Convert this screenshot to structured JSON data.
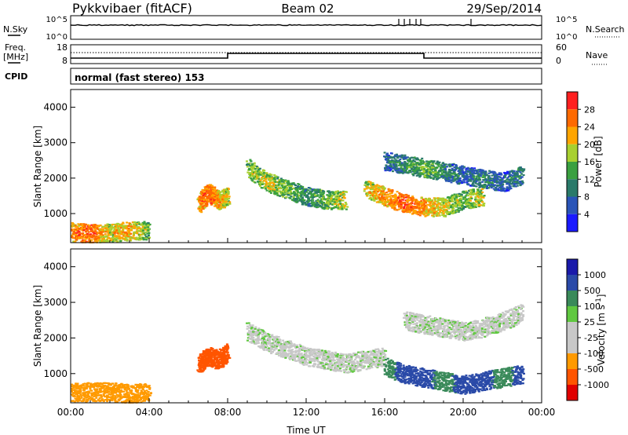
{
  "header": {
    "station": "Pykkvibaer (fitACF)",
    "beam": "Beam 02",
    "date": "29/Sep/2014"
  },
  "noise_panel": {
    "left_label": "N.Sky",
    "right_label": "N.Search",
    "left_ticks": [
      "10^5",
      "10^0"
    ],
    "right_ticks": [
      "10^5",
      "10^0"
    ]
  },
  "freq_panel": {
    "left_label": "Freq.",
    "left_unit": "[MHz]",
    "right_label": "Nave",
    "left_ticks": [
      "18",
      "8"
    ],
    "right_ticks": [
      "60",
      "0"
    ]
  },
  "cpid_panel": {
    "label": "CPID",
    "text": "normal (fast stereo) 153"
  },
  "colors": {
    "power": [
      "#1a1aff",
      "#2a55b8",
      "#2a7a6a",
      "#3aa040",
      "#a8d030",
      "#ffa500",
      "#ff6a00",
      "#ff2020"
    ],
    "velocity": [
      "#e00000",
      "#ff5500",
      "#ff9a00",
      "#c8c8c8",
      "#c8c8c8",
      "#60c840",
      "#3a8a5a",
      "#2a4aa8",
      "#1a1aaa"
    ]
  },
  "chart_data": [
    {
      "type": "heatmap",
      "title": "Power",
      "ylabel": "Slant Range [km]",
      "xlabel": "",
      "colorbar_label": "Power [dB]",
      "colorbar_ticks": [
        "28",
        "24",
        "20",
        "16",
        "12",
        "8",
        "4"
      ],
      "y_ticks": [
        "4000",
        "3000",
        "2000",
        "1000"
      ],
      "ylim": [
        180,
        4500
      ],
      "xlim": [
        0,
        24
      ],
      "series": [
        {
          "x": [
            0,
            1,
            2,
            3,
            4
          ],
          "y": [
            500,
            450,
            480,
            520,
            550
          ],
          "value": [
            24,
            28,
            20,
            24,
            16
          ]
        },
        {
          "x": [
            6.5,
            7,
            7.5,
            8
          ],
          "y": [
            1300,
            1600,
            1400,
            1500
          ],
          "value": [
            24,
            28,
            24,
            20
          ]
        },
        {
          "x": [
            9,
            10,
            11,
            12,
            13,
            14
          ],
          "y": [
            2300,
            1900,
            1700,
            1500,
            1400,
            1400
          ],
          "value": [
            16,
            20,
            16,
            12,
            16,
            20
          ]
        },
        {
          "x": [
            15,
            16,
            17,
            18,
            19,
            20,
            21
          ],
          "y": [
            1700,
            1500,
            1300,
            1200,
            1200,
            1400,
            1500
          ],
          "value": [
            20,
            24,
            28,
            24,
            20,
            16,
            20
          ]
        },
        {
          "x": [
            16,
            17,
            18,
            19,
            20,
            21,
            22,
            23
          ],
          "y": [
            2500,
            2400,
            2300,
            2200,
            2100,
            2000,
            1900,
            2100
          ],
          "value": [
            8,
            12,
            16,
            12,
            8,
            12,
            8,
            12
          ]
        }
      ]
    },
    {
      "type": "heatmap",
      "title": "Velocity",
      "ylabel": "Slant Range [km]",
      "xlabel": "Time UT",
      "colorbar_label": "Velocity [m s-1]",
      "colorbar_ticks": [
        "1000",
        "500",
        "100",
        "25",
        "-25",
        "-100",
        "-500",
        "-1000"
      ],
      "y_ticks": [
        "4000",
        "3000",
        "2000",
        "1000"
      ],
      "x_ticks": [
        "00:00",
        "04:00",
        "08:00",
        "12:00",
        "16:00",
        "20:00",
        "00:00"
      ],
      "ylim": [
        180,
        4500
      ],
      "xlim": [
        0,
        24
      ],
      "series": [
        {
          "x": [
            0,
            1,
            2,
            3,
            4
          ],
          "y": [
            500,
            500,
            500,
            450,
            500
          ],
          "value": [
            -100,
            -100,
            -100,
            -100,
            -100
          ]
        },
        {
          "x": [
            6.5,
            7,
            7.5,
            8
          ],
          "y": [
            1300,
            1500,
            1400,
            1600
          ],
          "value": [
            -500,
            -500,
            -500,
            -500
          ]
        },
        {
          "x": [
            9,
            10,
            11,
            12,
            13,
            14,
            15,
            16
          ],
          "y": [
            2200,
            1900,
            1700,
            1500,
            1400,
            1300,
            1400,
            1500
          ],
          "value": [
            0,
            0,
            0,
            0,
            0,
            0,
            0,
            0
          ]
        },
        {
          "x": [
            16,
            17,
            18,
            19,
            20,
            21,
            22,
            23
          ],
          "y": [
            1200,
            1000,
            900,
            800,
            700,
            800,
            900,
            1000
          ],
          "value": [
            100,
            500,
            500,
            100,
            500,
            500,
            100,
            500
          ]
        },
        {
          "x": [
            17,
            18,
            19,
            20,
            21,
            22,
            23
          ],
          "y": [
            2500,
            2400,
            2300,
            2200,
            2300,
            2500,
            2700
          ],
          "value": [
            0,
            0,
            0,
            0,
            0,
            0,
            0
          ]
        }
      ]
    }
  ]
}
